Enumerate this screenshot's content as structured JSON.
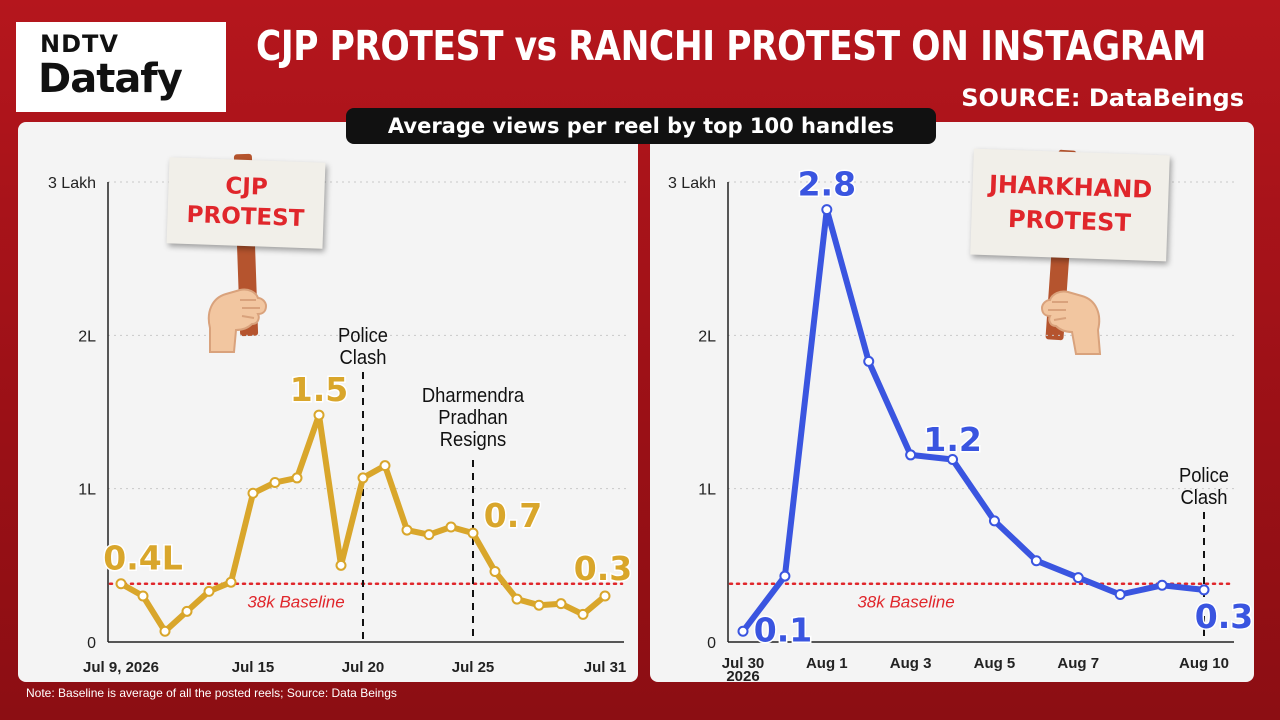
{
  "branding": {
    "logo_top": "NDTV",
    "logo_main": "Datafy"
  },
  "header": {
    "title": "CJP PROTEST vs RANCHI PROTEST ON INSTAGRAM",
    "source": "SOURCE: DataBeings",
    "subtitle": "Average views per reel by top 100 handles"
  },
  "footer": {
    "note": "Note: Baseline is average of all the posted reels; Source: Data Beings"
  },
  "colors": {
    "background": "#a31218",
    "cjp_line": "#d9a62b",
    "jharkhand_line": "#3a55e0",
    "baseline": "#e0262b",
    "panel": "#f4f4f4"
  },
  "signs": {
    "cjp_sign": "CJP\nPROTEST",
    "jharkhand_sign": "JHARKHAND\nPROTEST"
  },
  "chart_data": [
    {
      "type": "line",
      "sign": "CJP PROTEST",
      "y_tick_labels": [
        "0",
        "1L",
        "2L",
        "3 Lakh"
      ],
      "y_tick_values": [
        0,
        1,
        2,
        3
      ],
      "ylim": [
        0,
        3
      ],
      "x": [
        "Jul 9",
        "Jul 10",
        "Jul 11",
        "Jul 12",
        "Jul 13",
        "Jul 14",
        "Jul 15",
        "Jul 16",
        "Jul 17",
        "Jul 18",
        "Jul 19",
        "Jul 20",
        "Jul 21",
        "Jul 22",
        "Jul 23",
        "Jul 24",
        "Jul 25",
        "Jul 26",
        "Jul 27",
        "Jul 28",
        "Jul 29",
        "Jul 30",
        "Jul 31"
      ],
      "x_tick_labels": [
        "Jul 9, 2026",
        "Jul 15",
        "Jul 20",
        "Jul 25",
        "Jul 31"
      ],
      "x_tick_index": [
        0,
        6,
        11,
        16,
        22
      ],
      "series": [
        {
          "values": [
            0.38,
            0.3,
            0.07,
            0.2,
            0.33,
            0.39,
            0.97,
            1.04,
            1.07,
            1.48,
            0.5,
            1.07,
            1.15,
            0.73,
            0.7,
            0.75,
            0.71,
            0.46,
            0.28,
            0.24,
            0.25,
            0.18,
            0.3
          ],
          "color": "#d9a62b"
        }
      ],
      "data_labels": [
        {
          "index": 0,
          "text": "0.4L"
        },
        {
          "index": 9,
          "text": "1.5"
        },
        {
          "index": 16,
          "text": "0.7"
        },
        {
          "index": 22,
          "text": "0.3"
        }
      ],
      "baseline": {
        "value": 0.38,
        "label": "38k Baseline"
      },
      "events": [
        {
          "index": 11,
          "label": "Police\nClash"
        },
        {
          "index": 16,
          "label": "Dharmendra\nPradhan\nResigns"
        }
      ]
    },
    {
      "type": "line",
      "sign": "JHARKHAND PROTEST",
      "y_tick_labels": [
        "0",
        "1L",
        "2L",
        "3 Lakh"
      ],
      "y_tick_values": [
        0,
        1,
        2,
        3
      ],
      "ylim": [
        0,
        3
      ],
      "x": [
        "Jul 30",
        "Jul 31",
        "Aug 1",
        "Aug 2",
        "Aug 3",
        "Aug 4",
        "Aug 5",
        "Aug 6",
        "Aug 7",
        "Aug 8",
        "Aug 9",
        "Aug 10"
      ],
      "x_tick_labels": [
        "Jul 30\n2026",
        "Aug 1",
        "Aug 3",
        "Aug 5",
        "Aug 7",
        "Aug 10"
      ],
      "x_tick_index": [
        0,
        2,
        4,
        6,
        8,
        11
      ],
      "series": [
        {
          "values": [
            0.07,
            0.43,
            2.82,
            1.83,
            1.22,
            1.19,
            0.79,
            0.53,
            0.42,
            0.31,
            0.37,
            0.34
          ],
          "color": "#3a55e0"
        }
      ],
      "data_labels": [
        {
          "index": 0,
          "text": "0.1"
        },
        {
          "index": 2,
          "text": "2.8"
        },
        {
          "index": 4,
          "text": "1.2"
        },
        {
          "index": 11,
          "text": "0.3"
        }
      ],
      "baseline": {
        "value": 0.38,
        "label": "38k Baseline"
      },
      "events": [
        {
          "index": 11,
          "label": "Police\nClash"
        }
      ]
    }
  ]
}
